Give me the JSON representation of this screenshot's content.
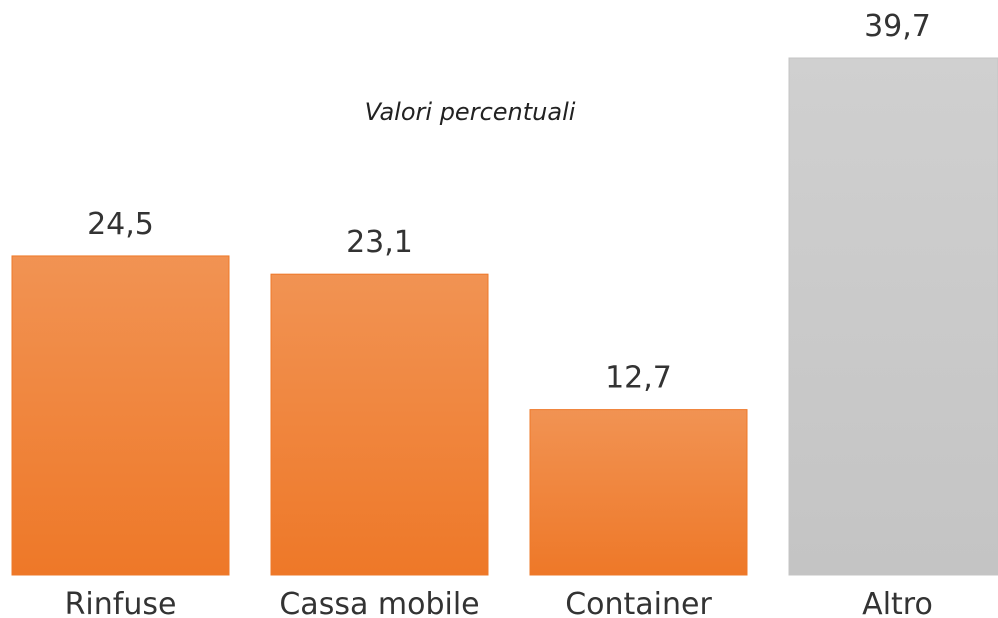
{
  "chart_data": {
    "type": "bar",
    "title": "Valori percentuali",
    "categories": [
      "Rinfuse",
      "Cassa mobile",
      "Container",
      "Altro"
    ],
    "values": [
      24.5,
      23.1,
      12.7,
      39.7
    ],
    "value_labels": [
      "24,5",
      "23,1",
      "12,7",
      "39,7"
    ],
    "colors": [
      "#ee7828",
      "#ee7828",
      "#ee7828",
      "#c4c4c4"
    ],
    "ylim": [
      0,
      44
    ]
  }
}
